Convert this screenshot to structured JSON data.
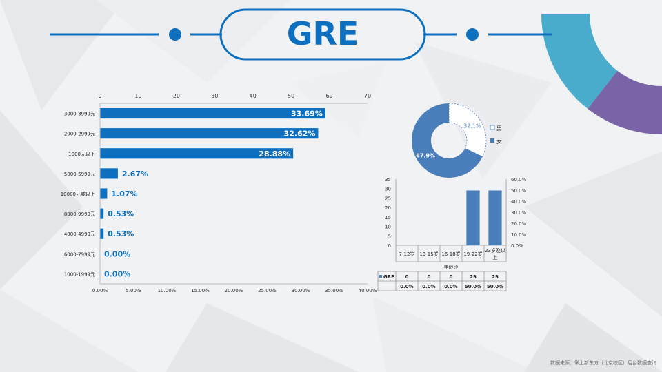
{
  "page": {
    "title": "GRE",
    "source": "数据来源：掌上新东方（北京校区）后台数据查询"
  },
  "colors": {
    "primary": "#0e6fbe",
    "pie_blue": "#4a7ebb",
    "ring_teal": "#4aaccc",
    "ring_purple": "#7a64a8",
    "ring_green": "#9bbb59"
  },
  "chart_data": [
    {
      "type": "bar",
      "orientation": "horizontal",
      "categories": [
        "3000-3999元",
        "2000-2999元",
        "1000元以下",
        "5000-5999元",
        "10000元或以上",
        "8000-9999元",
        "4000-4999元",
        "6000-7999元",
        "1000-1999元"
      ],
      "values": [
        33.69,
        32.62,
        28.88,
        2.67,
        1.07,
        0.53,
        0.53,
        0.0,
        0.0
      ],
      "value_labels": [
        "33.69%",
        "32.62%",
        "28.88%",
        "2.67%",
        "1.07%",
        "0.53%",
        "0.53%",
        "0.00%",
        "0.00%"
      ],
      "top_axis": {
        "ticks": [
          "0",
          "10",
          "20",
          "30",
          "40",
          "50",
          "60",
          "70"
        ],
        "range": [
          0,
          70
        ]
      },
      "bottom_axis": {
        "ticks": [
          "0.00%",
          "5.00%",
          "10.00%",
          "15.00%",
          "20.00%",
          "25.00%",
          "30.00%",
          "35.00%",
          "40.00%"
        ],
        "range": [
          0,
          40
        ]
      }
    },
    {
      "type": "pie",
      "variant": "donut",
      "slices": [
        {
          "name": "男",
          "value": 32.1,
          "label": "32.1%"
        },
        {
          "name": "女",
          "value": 67.9,
          "label": "67.9%"
        }
      ],
      "legend": [
        "男",
        "女"
      ],
      "legend_position": "right"
    },
    {
      "type": "bar",
      "categories": [
        "7-12岁",
        "13-15岁",
        "16-18岁",
        "19-22岁",
        "23岁及以上"
      ],
      "series": [
        {
          "name": "GRE",
          "values": [
            0,
            0,
            0,
            29,
            29
          ]
        }
      ],
      "percent_row": [
        "0.0%",
        "0.0%",
        "0.0%",
        "50.0%",
        "50.0%"
      ],
      "count_row": [
        "0",
        "0",
        "0",
        "29",
        "29"
      ],
      "xlabel": "年龄段",
      "left_axis": {
        "ticks": [
          "0",
          "5",
          "10",
          "15",
          "20",
          "25",
          "30",
          "35"
        ],
        "range": [
          0,
          35
        ]
      },
      "right_axis": {
        "ticks": [
          "0.0%",
          "10.0%",
          "20.0%",
          "30.0%",
          "40.0%",
          "50.0%",
          "60.0%"
        ],
        "range": [
          0,
          60
        ]
      }
    }
  ]
}
